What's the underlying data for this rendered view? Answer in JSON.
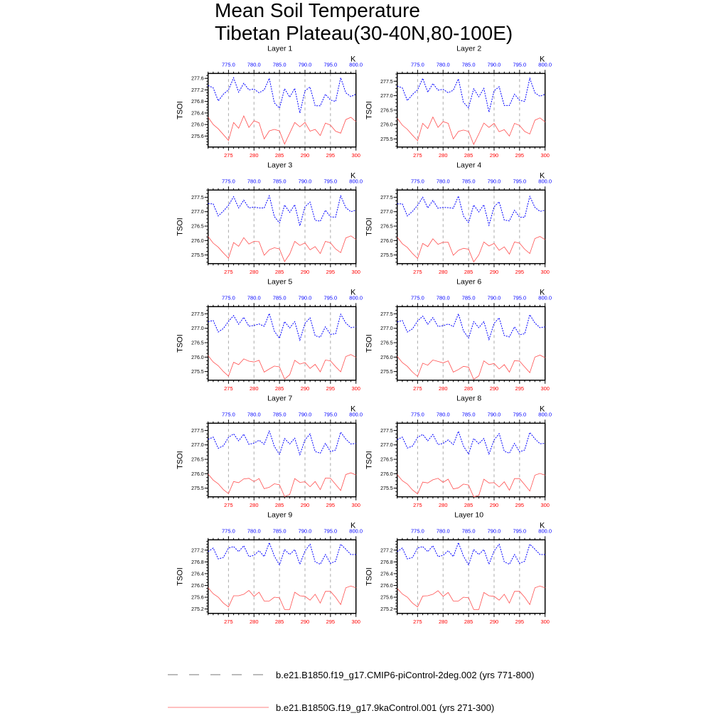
{
  "chart_data": {
    "type": "line",
    "title_line1": "Mean Soil Temperature",
    "title_line2": "Tibetan Plateau(30-40N,80-100E)",
    "ylabel": "TSOI",
    "units": "K",
    "x_bottom": {
      "range": [
        271,
        300
      ],
      "ticks": [
        275,
        280,
        285,
        290,
        295,
        300
      ],
      "color": "#ff0000"
    },
    "x_top": {
      "range": [
        771,
        800
      ],
      "ticks": [
        "775.0",
        "780.0",
        "785.0",
        "790.0",
        "795.0",
        "800.0"
      ],
      "color": "#0000ff"
    },
    "series_meta": [
      {
        "name": "b.e21.B1850.f19_g17.CMIP6-piControl-2deg.002 (yrs 771-800)",
        "color": "#0000ff",
        "style": "dashed"
      },
      {
        "name": "b.e21.B1850G.f19_g17.9kaControl.001 (yrs 271-300)",
        "color": "#ff0000",
        "style": "solid"
      }
    ],
    "panels": [
      {
        "title": "Layer 1",
        "ylim": [
          275.22,
          277.77
        ],
        "yticks": [
          "275.6",
          "276.0",
          "276.4",
          "276.8",
          "277.2",
          "277.6"
        ],
        "blue": [
          277.35,
          277.27,
          276.82,
          277.05,
          277.2,
          277.62,
          277.12,
          277.43,
          277.2,
          277.23,
          277.1,
          277.2,
          277.6,
          276.75,
          276.57,
          277.24,
          276.95,
          277.25,
          276.4,
          277.17,
          277.3,
          276.65,
          276.65,
          277.05,
          276.85,
          276.8,
          277.62,
          277.1,
          276.97,
          277.05
        ],
        "red": [
          276.25,
          276.0,
          275.85,
          275.65,
          275.45,
          276.07,
          275.87,
          276.3,
          275.9,
          276.13,
          276.06,
          275.5,
          275.78,
          275.83,
          275.78,
          275.32,
          275.7,
          276.07,
          275.92,
          276.07,
          275.77,
          275.83,
          275.62,
          276.05,
          275.98,
          275.77,
          275.7,
          276.17,
          276.25,
          276.1
        ]
      },
      {
        "title": "Layer 2",
        "ylim": [
          275.22,
          277.77
        ],
        "yticks": [
          "275.5",
          "276.0",
          "276.5",
          "277.0",
          "277.5"
        ],
        "blue": [
          277.33,
          277.27,
          276.83,
          277.04,
          277.2,
          277.6,
          277.12,
          277.42,
          277.19,
          277.22,
          277.1,
          277.19,
          277.58,
          276.77,
          276.58,
          277.24,
          276.96,
          277.25,
          276.43,
          277.17,
          277.31,
          276.66,
          276.66,
          277.05,
          276.84,
          276.8,
          277.6,
          277.1,
          276.98,
          277.05
        ],
        "red": [
          276.22,
          275.98,
          275.83,
          275.63,
          275.44,
          276.04,
          275.86,
          276.26,
          275.9,
          276.1,
          276.04,
          275.5,
          275.76,
          275.81,
          275.76,
          275.31,
          275.67,
          276.05,
          275.9,
          276.04,
          275.75,
          275.82,
          275.6,
          276.04,
          275.97,
          275.76,
          275.67,
          276.15,
          276.23,
          276.09
        ]
      },
      {
        "title": "Layer 3",
        "ylim": [
          275.2,
          277.75
        ],
        "yticks": [
          "275.5",
          "276.0",
          "276.5",
          "277.0",
          "277.5"
        ],
        "blue": [
          277.28,
          277.27,
          276.85,
          277.02,
          277.22,
          277.52,
          277.13,
          277.4,
          277.13,
          277.16,
          277.13,
          277.13,
          277.55,
          276.83,
          276.61,
          277.23,
          276.98,
          277.24,
          276.51,
          277.17,
          277.33,
          276.7,
          276.67,
          277.05,
          276.82,
          276.81,
          277.55,
          277.14,
          277.0,
          277.05
        ],
        "red": [
          276.14,
          275.91,
          275.77,
          275.57,
          275.39,
          275.93,
          275.8,
          276.1,
          275.88,
          275.97,
          275.96,
          275.49,
          275.68,
          275.75,
          275.71,
          275.27,
          275.53,
          275.97,
          275.83,
          275.92,
          275.68,
          275.79,
          275.55,
          275.97,
          275.92,
          275.71,
          275.58,
          276.09,
          276.16,
          276.04
        ]
      },
      {
        "title": "Layer 4",
        "ylim": [
          275.2,
          277.75
        ],
        "yticks": [
          "275.5",
          "276.0",
          "276.5",
          "277.0",
          "277.5"
        ],
        "blue": [
          277.27,
          277.27,
          276.85,
          277.01,
          277.22,
          277.5,
          277.13,
          277.39,
          277.12,
          277.15,
          277.14,
          277.12,
          277.54,
          276.85,
          276.62,
          277.23,
          276.99,
          277.24,
          276.53,
          277.17,
          277.34,
          276.71,
          276.68,
          277.05,
          276.81,
          276.81,
          277.53,
          277.15,
          277.01,
          277.05
        ],
        "red": [
          276.12,
          275.89,
          275.76,
          275.55,
          275.38,
          275.9,
          275.79,
          276.06,
          275.87,
          275.94,
          275.94,
          275.49,
          275.66,
          275.73,
          275.7,
          275.26,
          275.5,
          275.95,
          275.81,
          275.9,
          275.66,
          275.78,
          275.53,
          275.95,
          275.91,
          275.7,
          275.55,
          276.07,
          276.14,
          276.03
        ]
      },
      {
        "title": "Layer 5",
        "ylim": [
          275.2,
          277.75
        ],
        "yticks": [
          "275.5",
          "276.0",
          "276.5",
          "277.0",
          "277.5"
        ],
        "blue": [
          277.23,
          277.27,
          276.87,
          276.99,
          277.24,
          277.44,
          277.14,
          277.38,
          277.07,
          277.1,
          277.15,
          277.07,
          277.51,
          276.9,
          276.65,
          277.23,
          277.01,
          277.23,
          276.59,
          277.17,
          277.36,
          276.74,
          276.69,
          277.05,
          276.79,
          276.81,
          277.49,
          277.18,
          277.02,
          277.05
        ],
        "red": [
          276.05,
          275.83,
          275.7,
          275.5,
          275.34,
          275.82,
          275.74,
          275.94,
          275.86,
          275.83,
          275.89,
          275.48,
          275.59,
          275.69,
          275.66,
          275.24,
          275.39,
          275.89,
          275.76,
          275.81,
          275.61,
          275.75,
          275.49,
          275.9,
          275.87,
          275.67,
          275.49,
          276.02,
          276.09,
          275.99
        ]
      },
      {
        "title": "Layer 6",
        "ylim": [
          275.2,
          277.75
        ],
        "yticks": [
          "275.5",
          "276.0",
          "276.5",
          "277.0",
          "277.5"
        ],
        "blue": [
          277.22,
          277.27,
          276.87,
          276.98,
          277.25,
          277.42,
          277.14,
          277.37,
          277.06,
          277.09,
          277.15,
          277.06,
          277.5,
          276.91,
          276.66,
          277.23,
          277.02,
          277.23,
          276.61,
          277.17,
          277.36,
          276.75,
          276.7,
          277.05,
          276.78,
          276.81,
          277.47,
          277.18,
          277.02,
          277.05
        ],
        "red": [
          276.03,
          275.81,
          275.68,
          275.48,
          275.33,
          275.79,
          275.72,
          275.9,
          275.85,
          275.8,
          275.87,
          275.48,
          275.57,
          275.68,
          275.65,
          275.23,
          275.35,
          275.87,
          275.74,
          275.78,
          275.59,
          275.74,
          275.48,
          275.88,
          275.86,
          275.66,
          275.46,
          276.0,
          276.07,
          275.98
        ]
      },
      {
        "title": "Layer 7",
        "ylim": [
          275.2,
          277.75
        ],
        "yticks": [
          "275.5",
          "276.0",
          "276.5",
          "277.0",
          "277.5"
        ],
        "blue": [
          277.19,
          277.27,
          276.88,
          276.97,
          277.26,
          277.38,
          277.14,
          277.37,
          277.02,
          277.06,
          277.16,
          277.02,
          277.48,
          276.95,
          276.67,
          277.22,
          277.03,
          277.23,
          276.66,
          277.17,
          277.38,
          276.77,
          276.71,
          277.05,
          276.77,
          276.82,
          277.44,
          277.2,
          277.03,
          277.05
        ],
        "red": [
          275.99,
          275.78,
          275.65,
          275.45,
          275.31,
          275.73,
          275.69,
          275.82,
          275.84,
          275.73,
          275.83,
          275.48,
          275.53,
          275.65,
          275.62,
          275.21,
          275.28,
          275.83,
          275.7,
          275.72,
          275.55,
          275.73,
          275.45,
          275.85,
          275.84,
          275.63,
          275.42,
          275.97,
          276.03,
          275.96
        ]
      },
      {
        "title": "Layer 8",
        "ylim": [
          275.2,
          277.75
        ],
        "yticks": [
          "275.5",
          "276.0",
          "276.5",
          "277.0",
          "277.5"
        ],
        "blue": [
          277.18,
          277.27,
          276.89,
          276.96,
          277.26,
          277.36,
          277.14,
          277.36,
          277.01,
          277.05,
          277.17,
          277.01,
          277.47,
          276.96,
          276.68,
          277.22,
          277.04,
          277.22,
          276.68,
          277.17,
          277.39,
          276.78,
          276.71,
          277.05,
          276.76,
          276.82,
          277.43,
          277.21,
          277.04,
          277.05
        ],
        "red": [
          275.97,
          275.76,
          275.64,
          275.44,
          275.3,
          275.71,
          275.68,
          275.79,
          275.84,
          275.7,
          275.81,
          275.47,
          275.51,
          275.64,
          275.61,
          275.2,
          275.25,
          275.81,
          275.68,
          275.69,
          275.54,
          275.72,
          275.43,
          275.83,
          275.83,
          275.62,
          275.4,
          275.95,
          276.01,
          275.95
        ]
      },
      {
        "title": "Layer 9",
        "ylim": [
          275.05,
          277.55
        ],
        "yticks": [
          "275.2",
          "275.6",
          "276.0",
          "276.4",
          "276.8",
          "277.2"
        ],
        "blue": [
          277.15,
          277.27,
          276.9,
          276.95,
          277.27,
          277.32,
          277.15,
          277.35,
          276.98,
          277.02,
          277.18,
          276.98,
          277.45,
          277.0,
          276.7,
          277.22,
          277.05,
          277.22,
          276.72,
          277.17,
          277.4,
          276.8,
          276.72,
          277.05,
          276.75,
          276.82,
          277.4,
          277.23,
          277.05,
          277.05
        ],
        "red": [
          275.92,
          275.72,
          275.6,
          275.4,
          275.27,
          275.65,
          275.65,
          275.7,
          275.83,
          275.63,
          275.77,
          275.47,
          275.47,
          275.6,
          275.58,
          275.18,
          275.18,
          275.77,
          275.65,
          275.63,
          275.5,
          275.7,
          275.4,
          275.8,
          275.8,
          275.6,
          275.35,
          275.92,
          275.98,
          275.92
        ]
      },
      {
        "title": "Layer 10",
        "ylim": [
          275.05,
          277.55
        ],
        "yticks": [
          "275.2",
          "275.6",
          "276.0",
          "276.4",
          "276.8",
          "277.2"
        ],
        "blue": [
          277.15,
          277.27,
          276.9,
          276.95,
          277.27,
          277.32,
          277.15,
          277.35,
          276.98,
          277.02,
          277.18,
          276.98,
          277.45,
          277.0,
          276.7,
          277.22,
          277.05,
          277.22,
          276.72,
          277.17,
          277.4,
          276.8,
          276.72,
          277.05,
          276.75,
          276.82,
          277.4,
          277.23,
          277.05,
          277.05
        ],
        "red": [
          275.9,
          275.71,
          275.6,
          275.4,
          275.27,
          275.64,
          275.65,
          275.7,
          275.82,
          275.63,
          275.76,
          275.47,
          275.47,
          275.6,
          275.58,
          275.18,
          275.18,
          275.76,
          275.65,
          275.63,
          275.5,
          275.7,
          275.4,
          275.8,
          275.8,
          275.6,
          275.35,
          275.92,
          275.98,
          275.92
        ]
      }
    ]
  }
}
